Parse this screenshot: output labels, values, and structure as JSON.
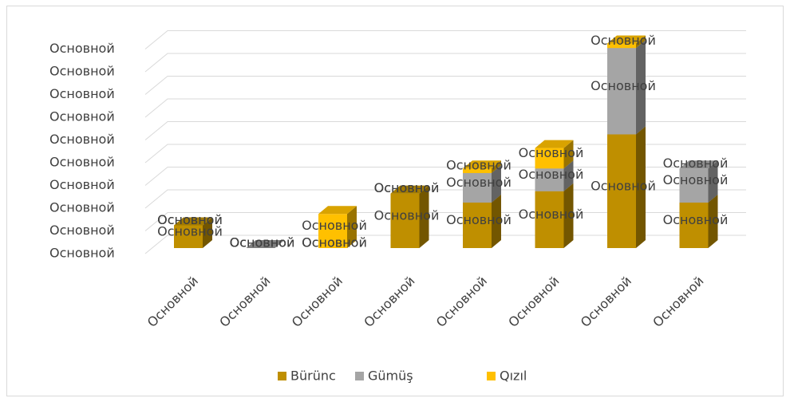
{
  "chart_data": {
    "type": "bar3d_stacked",
    "categories": [
      "Основной",
      "Основной",
      "Основной",
      "Основной",
      "Основной",
      "Основной",
      "Основной",
      "Основной"
    ],
    "series": [
      {
        "name": "Bürünc",
        "color": "#bf8f00",
        "values": [
          1,
          0,
          0,
          2.4,
          2,
          2.5,
          5,
          2
        ],
        "value_labels": [
          "Основной",
          "Основной",
          "Основной",
          "Основной",
          "Основной",
          "Основной",
          "Основной",
          "Основной"
        ]
      },
      {
        "name": "Gümüş",
        "color": "#a5a5a5",
        "values": [
          0,
          0,
          0,
          0,
          1.3,
          1,
          3.8,
          1.5
        ],
        "value_labels": [
          "Основной",
          "Основной",
          "Основной",
          "Основной",
          "Основной",
          "Основной",
          "Основной",
          "Основной"
        ]
      },
      {
        "name": "Qızıl",
        "color": "#ffc000",
        "values": [
          0,
          0,
          1.5,
          0,
          0.2,
          0.9,
          0.2,
          0
        ],
        "value_labels": [
          "Основной",
          "Основной",
          "Основной",
          "Основной",
          "Основной",
          "Основной",
          "Основной",
          "Основной"
        ]
      }
    ],
    "ylim": [
      0,
      9
    ],
    "yticks": [
      {
        "value": 0,
        "label": "Основной"
      },
      {
        "value": 1,
        "label": "Основной"
      },
      {
        "value": 2,
        "label": "Основной"
      },
      {
        "value": 3,
        "label": "Основной"
      },
      {
        "value": 4,
        "label": "Основной"
      },
      {
        "value": 5,
        "label": "Основной"
      },
      {
        "value": 6,
        "label": "Основной"
      },
      {
        "value": 7,
        "label": "Основной"
      },
      {
        "value": 8,
        "label": "Основной"
      },
      {
        "value": 9,
        "label": "Основной"
      }
    ],
    "grid": true,
    "legend": "bottom"
  }
}
